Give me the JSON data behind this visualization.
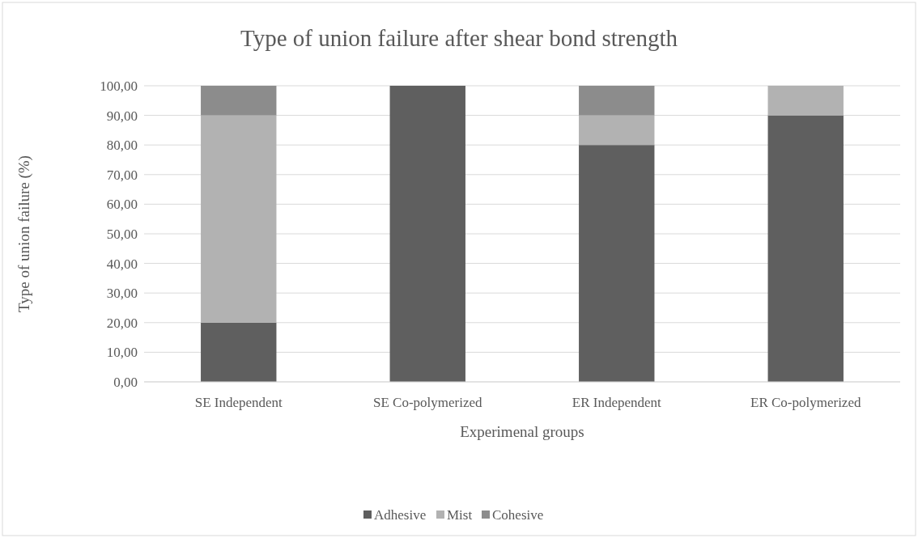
{
  "chart_data": {
    "type": "bar",
    "title": "Type of union failure after shear bond strength",
    "xlabel": "Experimenal groups",
    "ylabel": "Type of union failure (%)",
    "categories": [
      "SE Independent",
      "SE Co-polymerized",
      "ER Independent",
      "ER Co-polymerized"
    ],
    "stacked": true,
    "series": [
      {
        "name": "Adhesive",
        "color": "#5f5f5f",
        "values": [
          20,
          100,
          80,
          90
        ]
      },
      {
        "name": "Mist",
        "color": "#b2b2b2",
        "values": [
          70,
          0,
          10,
          10
        ]
      },
      {
        "name": "Cohesive",
        "color": "#8c8c8c",
        "values": [
          10,
          0,
          10,
          0
        ]
      }
    ],
    "ylim": [
      0,
      100
    ],
    "yticks": [
      {
        "value": 0,
        "label": "0,00"
      },
      {
        "value": 10,
        "label": "10,00"
      },
      {
        "value": 20,
        "label": "20,00"
      },
      {
        "value": 30,
        "label": "30,00"
      },
      {
        "value": 40,
        "label": "40,00"
      },
      {
        "value": 50,
        "label": "50,00"
      },
      {
        "value": 60,
        "label": "60,00"
      },
      {
        "value": 70,
        "label": "70,00"
      },
      {
        "value": 80,
        "label": "80,00"
      },
      {
        "value": 90,
        "label": "90,00"
      },
      {
        "value": 100,
        "label": "100,00"
      }
    ],
    "grid": "y",
    "legend": "bottom"
  }
}
